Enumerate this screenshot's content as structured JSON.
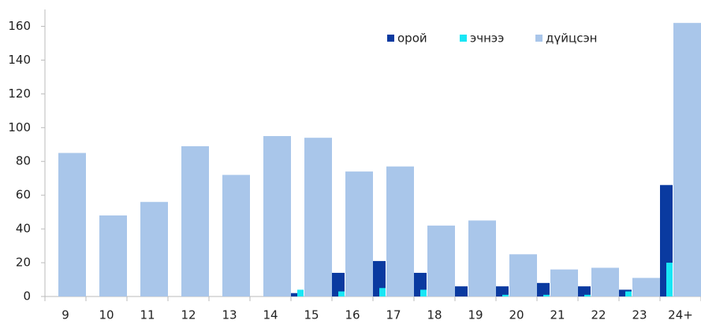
{
  "chart_data": {
    "type": "bar",
    "categories": [
      "9",
      "10",
      "11",
      "12",
      "13",
      "14",
      "15",
      "16",
      "17",
      "18",
      "19",
      "20",
      "21",
      "22",
      "23",
      "24+"
    ],
    "series": [
      {
        "name": "орой",
        "color": "#0a3aa0",
        "values": [
          0,
          0,
          0,
          0,
          0,
          0,
          2,
          14,
          21,
          14,
          6,
          6,
          8,
          6,
          4,
          66
        ]
      },
      {
        "name": "эчнээ",
        "color": "#19e6f5",
        "values": [
          0,
          0,
          0,
          0,
          0,
          0,
          4,
          3,
          5,
          4,
          0,
          1,
          1,
          1,
          3,
          20
        ]
      },
      {
        "name": "дүйцсэн",
        "color": "#a9c6ea",
        "values": [
          85,
          48,
          56,
          89,
          72,
          95,
          94,
          74,
          77,
          42,
          45,
          25,
          16,
          17,
          11,
          162
        ]
      }
    ],
    "ylim": [
      0,
      170
    ],
    "yticks": [
      0,
      20,
      40,
      60,
      80,
      100,
      120,
      140,
      160
    ],
    "grid": false,
    "legend": "top-right"
  }
}
